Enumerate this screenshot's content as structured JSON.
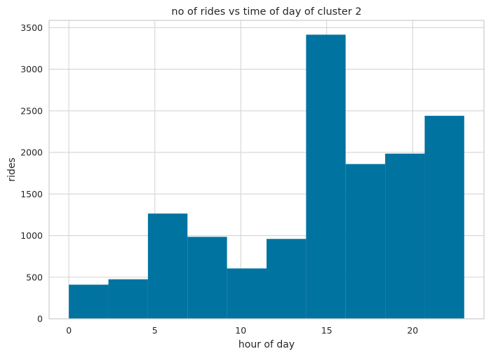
{
  "chart_data": {
    "type": "bar",
    "title": "no of rides vs time of day of cluster 2",
    "xlabel": "hour of day",
    "ylabel": "rides",
    "bin_edges": [
      0,
      2.3,
      4.6,
      6.9,
      9.2,
      11.5,
      13.8,
      16.1,
      18.4,
      20.7,
      23
    ],
    "values": [
      410,
      475,
      1265,
      985,
      605,
      960,
      3415,
      1860,
      1985,
      2440
    ],
    "xlim": [
      -1.15,
      24.15
    ],
    "ylim": [
      0,
      3587
    ],
    "xticks": [
      0,
      5,
      10,
      15,
      20
    ],
    "yticks": [
      0,
      500,
      1000,
      1500,
      2000,
      2500,
      3000,
      3500
    ],
    "grid": true,
    "bar_color": "#0173a1",
    "grid_color": "#d5d5d5",
    "spine_color": "#cccccc"
  }
}
